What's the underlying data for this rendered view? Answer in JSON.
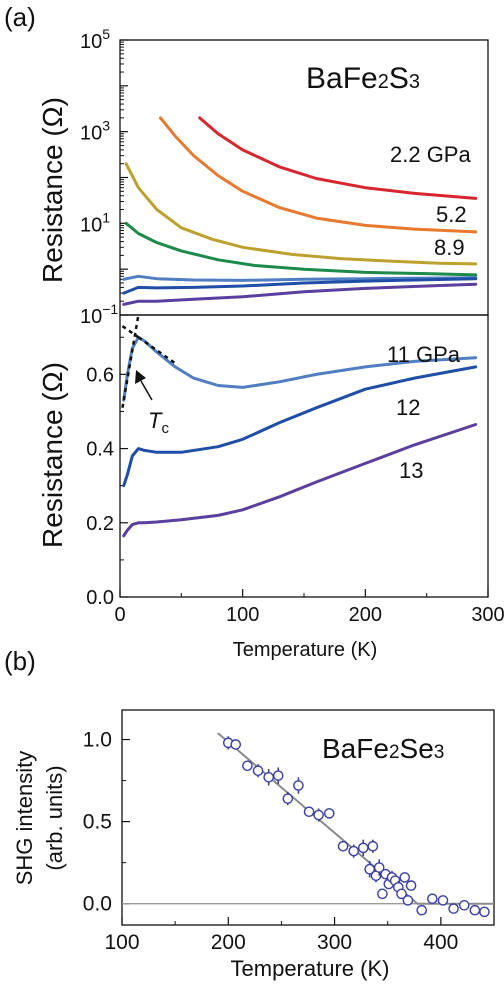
{
  "panel_a_label": "(a)",
  "panel_b_label": "(b)",
  "chart_data": [
    {
      "type": "line",
      "panel": "a-top",
      "annotation_compound": {
        "parts": [
          "BaFe",
          "2",
          "S",
          "3"
        ]
      },
      "ylabel": "Resistance (Ω)",
      "yscale": "log",
      "ylim": [
        0.1,
        100000
      ],
      "xlim": [
        0,
        300
      ],
      "yticks": [
        {
          "mant": "10",
          "exp": "5",
          "value": 100000
        },
        {
          "mant": "10",
          "exp": "3",
          "value": 1000
        },
        {
          "mant": "10",
          "exp": "1",
          "value": 10
        },
        {
          "mant": "10",
          "exp": "−1",
          "value": 0.1
        }
      ],
      "series": [
        {
          "name": "2.2 GPa",
          "label": "2.2 GPa",
          "color": "#d8262e",
          "x": [
            65,
            80,
            100,
            130,
            160,
            200,
            240,
            290
          ],
          "y": [
            2000,
            900,
            400,
            170,
            95,
            60,
            45,
            35
          ]
        },
        {
          "name": "5.2",
          "label": "5.2",
          "color": "#e8792e",
          "x": [
            33,
            45,
            60,
            80,
            100,
            130,
            160,
            200,
            240,
            290
          ],
          "y": [
            2000,
            800,
            300,
            110,
            50,
            22,
            13,
            9,
            7.5,
            6.5
          ]
        },
        {
          "name": "8.9",
          "label": "8.9",
          "color": "#bda12e",
          "x": [
            5,
            15,
            30,
            50,
            75,
            100,
            140,
            180,
            220,
            260,
            290
          ],
          "y": [
            200,
            60,
            20,
            8,
            4.5,
            3,
            2.1,
            1.7,
            1.5,
            1.35,
            1.3
          ]
        },
        {
          "name": "green",
          "color": "#1e8a4a",
          "x": [
            5,
            15,
            30,
            50,
            80,
            110,
            150,
            200,
            250,
            290
          ],
          "y": [
            10,
            6,
            3.8,
            2.5,
            1.6,
            1.2,
            1.0,
            0.85,
            0.8,
            0.75
          ]
        },
        {
          "name": "11 GPa",
          "color": "#4f7fc0",
          "x": [
            3,
            15,
            30,
            60,
            100,
            150,
            200,
            250,
            290
          ],
          "y": [
            0.6,
            0.7,
            0.62,
            0.58,
            0.57,
            0.6,
            0.62,
            0.64,
            0.65
          ]
        },
        {
          "name": "12",
          "color": "#1f4ea6",
          "x": [
            3,
            15,
            30,
            60,
            100,
            150,
            200,
            250,
            290
          ],
          "y": [
            0.3,
            0.4,
            0.39,
            0.4,
            0.43,
            0.5,
            0.55,
            0.59,
            0.62
          ]
        },
        {
          "name": "13",
          "color": "#5b3f9e",
          "x": [
            3,
            15,
            30,
            60,
            100,
            150,
            200,
            250,
            290
          ],
          "y": [
            0.17,
            0.2,
            0.2,
            0.22,
            0.25,
            0.32,
            0.38,
            0.43,
            0.47
          ]
        }
      ]
    },
    {
      "type": "line",
      "panel": "a-bottom",
      "ylabel": "Resistance (Ω)",
      "xlabel": "Temperature (K)",
      "xlim": [
        0,
        300
      ],
      "ylim": [
        0,
        0.76
      ],
      "xticks": [
        "0",
        "100",
        "200",
        "300"
      ],
      "yticks": [
        "0.0",
        "0.2",
        "0.4",
        "0.6"
      ],
      "annotation_tc": {
        "main": "T",
        "sub": "c"
      },
      "series": [
        {
          "name": "11 GPa",
          "label": "11 GPa",
          "color": "#4f7fc0",
          "x": [
            3,
            6,
            10,
            15,
            20,
            30,
            45,
            60,
            80,
            100,
            130,
            160,
            200,
            240,
            290
          ],
          "y": [
            0.53,
            0.6,
            0.67,
            0.7,
            0.69,
            0.66,
            0.62,
            0.59,
            0.57,
            0.565,
            0.58,
            0.6,
            0.62,
            0.635,
            0.645
          ]
        },
        {
          "name": "12",
          "label": "12",
          "color": "#1f4ea6",
          "x": [
            3,
            6,
            10,
            15,
            20,
            30,
            50,
            80,
            100,
            130,
            160,
            200,
            240,
            290
          ],
          "y": [
            0.3,
            0.33,
            0.38,
            0.4,
            0.395,
            0.39,
            0.39,
            0.405,
            0.425,
            0.47,
            0.51,
            0.56,
            0.59,
            0.62
          ]
        },
        {
          "name": "13",
          "label": "13",
          "color": "#5b3f9e",
          "x": [
            3,
            6,
            10,
            15,
            20,
            30,
            50,
            80,
            100,
            130,
            160,
            200,
            240,
            290
          ],
          "y": [
            0.165,
            0.18,
            0.195,
            0.2,
            0.2,
            0.202,
            0.208,
            0.22,
            0.235,
            0.27,
            0.31,
            0.36,
            0.41,
            0.465
          ]
        }
      ],
      "tc_guides": [
        {
          "x": [
            2,
            15
          ],
          "y": [
            0.51,
            0.76
          ]
        },
        {
          "x": [
            2,
            15
          ],
          "y": [
            0.73,
            0.7
          ]
        },
        {
          "x": [
            15,
            45
          ],
          "y": [
            0.7,
            0.63
          ]
        }
      ]
    },
    {
      "type": "scatter",
      "panel": "b",
      "annotation_compound": {
        "parts": [
          "BaFe",
          "2",
          "Se",
          "3"
        ]
      },
      "xlabel": "Temperature (K)",
      "ylabel": [
        "SHG intensity",
        "(arb. units)"
      ],
      "xlim": [
        100,
        450
      ],
      "ylim": [
        -0.13,
        1.18
      ],
      "xticks": [
        "100",
        "200",
        "300",
        "400"
      ],
      "yticks": [
        "0.0",
        "0.5",
        "1.0"
      ],
      "marker_color": "#3b3fa3",
      "points": [
        {
          "x": 200,
          "y": 0.98,
          "err": 0.04
        },
        {
          "x": 207,
          "y": 0.97,
          "err": 0.03
        },
        {
          "x": 218,
          "y": 0.84,
          "err": 0.03
        },
        {
          "x": 228,
          "y": 0.81,
          "err": 0.04
        },
        {
          "x": 238,
          "y": 0.77,
          "err": 0.05
        },
        {
          "x": 247,
          "y": 0.78,
          "err": 0.05
        },
        {
          "x": 256,
          "y": 0.64,
          "err": 0.04
        },
        {
          "x": 266,
          "y": 0.72,
          "err": 0.05
        },
        {
          "x": 276,
          "y": 0.56,
          "err": 0.03
        },
        {
          "x": 285,
          "y": 0.54,
          "err": 0.04
        },
        {
          "x": 295,
          "y": 0.55,
          "err": 0.03
        },
        {
          "x": 308,
          "y": 0.35,
          "err": 0.03
        },
        {
          "x": 318,
          "y": 0.32,
          "err": 0.04
        },
        {
          "x": 327,
          "y": 0.34,
          "err": 0.05
        },
        {
          "x": 333,
          "y": 0.21,
          "err": 0.05
        },
        {
          "x": 336,
          "y": 0.35,
          "err": 0.04
        },
        {
          "x": 339,
          "y": 0.17,
          "err": 0.04
        },
        {
          "x": 342,
          "y": 0.22,
          "err": 0.05
        },
        {
          "x": 345,
          "y": 0.06,
          "err": 0.03
        },
        {
          "x": 348,
          "y": 0.18,
          "err": 0.03
        },
        {
          "x": 351,
          "y": 0.12,
          "err": 0.03
        },
        {
          "x": 354,
          "y": 0.16,
          "err": 0.04
        },
        {
          "x": 357,
          "y": 0.14,
          "err": 0.03
        },
        {
          "x": 360,
          "y": 0.1,
          "err": 0.04
        },
        {
          "x": 363,
          "y": 0.06,
          "err": 0.03
        },
        {
          "x": 366,
          "y": 0.16,
          "err": 0.03
        },
        {
          "x": 369,
          "y": 0.02,
          "err": 0.03
        },
        {
          "x": 372,
          "y": 0.11,
          "err": 0.03
        },
        {
          "x": 382,
          "y": -0.04,
          "err": 0.03
        },
        {
          "x": 392,
          "y": 0.03,
          "err": 0.02
        },
        {
          "x": 402,
          "y": 0.02,
          "err": 0.02
        },
        {
          "x": 412,
          "y": -0.03,
          "err": 0.02
        },
        {
          "x": 422,
          "y": -0.01,
          "err": 0.02
        },
        {
          "x": 432,
          "y": -0.04,
          "err": 0.02
        },
        {
          "x": 441,
          "y": -0.05,
          "err": 0.02
        }
      ],
      "fit_line": {
        "x": [
          190,
          378,
          450
        ],
        "y": [
          1.04,
          0.0,
          0.0
        ]
      },
      "baseline_y": 0.0
    }
  ]
}
